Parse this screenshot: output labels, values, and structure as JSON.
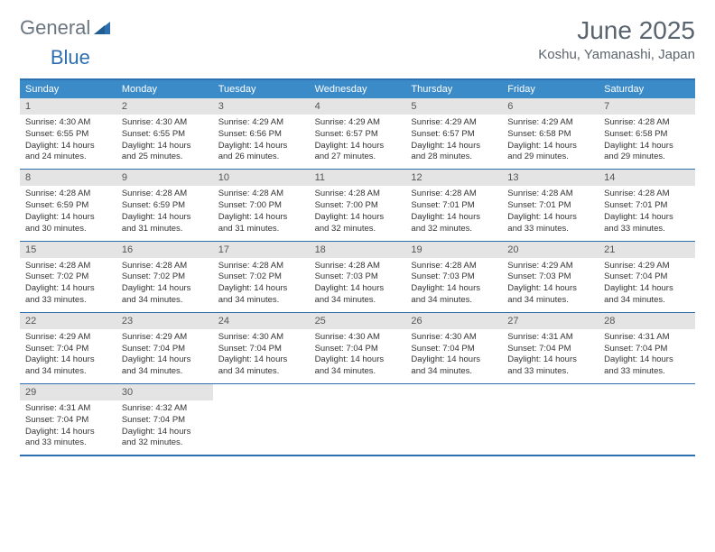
{
  "logo": {
    "text1": "General",
    "text2": "Blue"
  },
  "header": {
    "month_title": "June 2025",
    "location": "Koshu, Yamanashi, Japan"
  },
  "colors": {
    "header_bg": "#3b8bc9",
    "border": "#2e6fb0",
    "daynum_bg": "#e4e4e4",
    "text_muted": "#5a646e"
  },
  "day_names": [
    "Sunday",
    "Monday",
    "Tuesday",
    "Wednesday",
    "Thursday",
    "Friday",
    "Saturday"
  ],
  "labels": {
    "sunrise": "Sunrise:",
    "sunset": "Sunset:",
    "daylight": "Daylight:"
  },
  "weeks": [
    [
      {
        "n": 1,
        "sr": "4:30 AM",
        "ss": "6:55 PM",
        "d": "14 hours and 24 minutes."
      },
      {
        "n": 2,
        "sr": "4:30 AM",
        "ss": "6:55 PM",
        "d": "14 hours and 25 minutes."
      },
      {
        "n": 3,
        "sr": "4:29 AM",
        "ss": "6:56 PM",
        "d": "14 hours and 26 minutes."
      },
      {
        "n": 4,
        "sr": "4:29 AM",
        "ss": "6:57 PM",
        "d": "14 hours and 27 minutes."
      },
      {
        "n": 5,
        "sr": "4:29 AM",
        "ss": "6:57 PM",
        "d": "14 hours and 28 minutes."
      },
      {
        "n": 6,
        "sr": "4:29 AM",
        "ss": "6:58 PM",
        "d": "14 hours and 29 minutes."
      },
      {
        "n": 7,
        "sr": "4:28 AM",
        "ss": "6:58 PM",
        "d": "14 hours and 29 minutes."
      }
    ],
    [
      {
        "n": 8,
        "sr": "4:28 AM",
        "ss": "6:59 PM",
        "d": "14 hours and 30 minutes."
      },
      {
        "n": 9,
        "sr": "4:28 AM",
        "ss": "6:59 PM",
        "d": "14 hours and 31 minutes."
      },
      {
        "n": 10,
        "sr": "4:28 AM",
        "ss": "7:00 PM",
        "d": "14 hours and 31 minutes."
      },
      {
        "n": 11,
        "sr": "4:28 AM",
        "ss": "7:00 PM",
        "d": "14 hours and 32 minutes."
      },
      {
        "n": 12,
        "sr": "4:28 AM",
        "ss": "7:01 PM",
        "d": "14 hours and 32 minutes."
      },
      {
        "n": 13,
        "sr": "4:28 AM",
        "ss": "7:01 PM",
        "d": "14 hours and 33 minutes."
      },
      {
        "n": 14,
        "sr": "4:28 AM",
        "ss": "7:01 PM",
        "d": "14 hours and 33 minutes."
      }
    ],
    [
      {
        "n": 15,
        "sr": "4:28 AM",
        "ss": "7:02 PM",
        "d": "14 hours and 33 minutes."
      },
      {
        "n": 16,
        "sr": "4:28 AM",
        "ss": "7:02 PM",
        "d": "14 hours and 34 minutes."
      },
      {
        "n": 17,
        "sr": "4:28 AM",
        "ss": "7:02 PM",
        "d": "14 hours and 34 minutes."
      },
      {
        "n": 18,
        "sr": "4:28 AM",
        "ss": "7:03 PM",
        "d": "14 hours and 34 minutes."
      },
      {
        "n": 19,
        "sr": "4:28 AM",
        "ss": "7:03 PM",
        "d": "14 hours and 34 minutes."
      },
      {
        "n": 20,
        "sr": "4:29 AM",
        "ss": "7:03 PM",
        "d": "14 hours and 34 minutes."
      },
      {
        "n": 21,
        "sr": "4:29 AM",
        "ss": "7:04 PM",
        "d": "14 hours and 34 minutes."
      }
    ],
    [
      {
        "n": 22,
        "sr": "4:29 AM",
        "ss": "7:04 PM",
        "d": "14 hours and 34 minutes."
      },
      {
        "n": 23,
        "sr": "4:29 AM",
        "ss": "7:04 PM",
        "d": "14 hours and 34 minutes."
      },
      {
        "n": 24,
        "sr": "4:30 AM",
        "ss": "7:04 PM",
        "d": "14 hours and 34 minutes."
      },
      {
        "n": 25,
        "sr": "4:30 AM",
        "ss": "7:04 PM",
        "d": "14 hours and 34 minutes."
      },
      {
        "n": 26,
        "sr": "4:30 AM",
        "ss": "7:04 PM",
        "d": "14 hours and 34 minutes."
      },
      {
        "n": 27,
        "sr": "4:31 AM",
        "ss": "7:04 PM",
        "d": "14 hours and 33 minutes."
      },
      {
        "n": 28,
        "sr": "4:31 AM",
        "ss": "7:04 PM",
        "d": "14 hours and 33 minutes."
      }
    ],
    [
      {
        "n": 29,
        "sr": "4:31 AM",
        "ss": "7:04 PM",
        "d": "14 hours and 33 minutes."
      },
      {
        "n": 30,
        "sr": "4:32 AM",
        "ss": "7:04 PM",
        "d": "14 hours and 32 minutes."
      },
      null,
      null,
      null,
      null,
      null
    ]
  ]
}
